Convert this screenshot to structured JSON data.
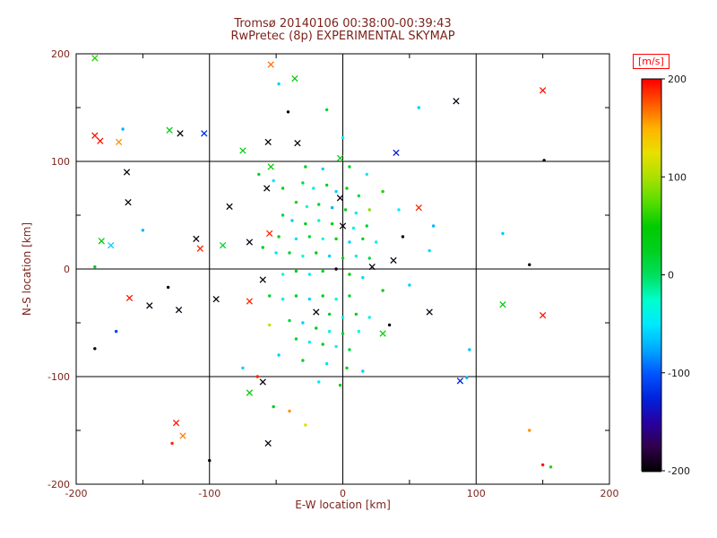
{
  "title": {
    "line1": "Tromsø 20140106 00:38:00-00:39:43",
    "line2": "RwPretec (8p) EXPERIMENTAL SKYMAP"
  },
  "axes": {
    "xlabel": "E-W location [km]",
    "ylabel": "N-S location [km]",
    "xticks": [
      -200,
      -100,
      0,
      100,
      200
    ],
    "yticks": [
      -200,
      -100,
      0,
      100,
      200
    ],
    "xlim": [
      -200,
      200
    ],
    "ylim": [
      -200,
      200
    ],
    "minor_tick_km": 50,
    "grid": true
  },
  "colorbar": {
    "label": "[m/s]",
    "ticks": [
      200,
      100,
      0,
      -100,
      -200
    ],
    "min": -200,
    "max": 200,
    "stops": [
      {
        "v": -200,
        "c": "#000000"
      },
      {
        "v": -175,
        "c": "#30004a"
      },
      {
        "v": -150,
        "c": "#2800a0"
      },
      {
        "v": -125,
        "c": "#0022dd"
      },
      {
        "v": -100,
        "c": "#0055ff"
      },
      {
        "v": -75,
        "c": "#00aaff"
      },
      {
        "v": -50,
        "c": "#00e8ff"
      },
      {
        "v": -25,
        "c": "#00ffcc"
      },
      {
        "v": 0,
        "c": "#00e060"
      },
      {
        "v": 25,
        "c": "#00d020"
      },
      {
        "v": 50,
        "c": "#00cc00"
      },
      {
        "v": 75,
        "c": "#55dd00"
      },
      {
        "v": 100,
        "c": "#aae000"
      },
      {
        "v": 125,
        "c": "#e8e000"
      },
      {
        "v": 150,
        "c": "#ffb400"
      },
      {
        "v": 175,
        "c": "#ff5a00"
      },
      {
        "v": 200,
        "c": "#ff0000"
      }
    ]
  },
  "colors": {
    "axis_text": "#7d231c",
    "colorbar_tick_text": "#1a1a1a",
    "frame": "#000000",
    "ms_label": "#ff0000",
    "background": "#ffffff"
  },
  "chart_data": {
    "type": "scatter",
    "title": "Tromsø 20140106 00:38:00-00:39:43 / RwPretec (8p) EXPERIMENTAL SKYMAP",
    "xlabel": "E-W location [km]",
    "ylabel": "N-S location [km]",
    "xlim": [
      -200,
      200
    ],
    "ylim": [
      -200,
      200
    ],
    "grid": true,
    "colorbar_label": "[m/s]",
    "colorbar_range": [
      -200,
      200
    ],
    "point_format": [
      "x_km",
      "y_km",
      "velocity_ms",
      "marker"
    ],
    "points": [
      [
        -186,
        196,
        60,
        "x"
      ],
      [
        -54,
        190,
        170,
        "x"
      ],
      [
        -36,
        177,
        45,
        "x"
      ],
      [
        -48,
        172,
        -60,
        "."
      ],
      [
        150,
        166,
        195,
        "x"
      ],
      [
        85,
        156,
        -195,
        "x"
      ],
      [
        57,
        150,
        -60,
        "."
      ],
      [
        -41,
        146,
        -195,
        "."
      ],
      [
        -12,
        148,
        20,
        "."
      ],
      [
        0,
        122,
        -50,
        "."
      ],
      [
        -165,
        130,
        -70,
        "."
      ],
      [
        -186,
        124,
        195,
        "x"
      ],
      [
        -182,
        119,
        195,
        "x"
      ],
      [
        -130,
        129,
        40,
        "x"
      ],
      [
        -122,
        126,
        -195,
        "x"
      ],
      [
        -104,
        126,
        -120,
        "x"
      ],
      [
        -168,
        118,
        160,
        "x"
      ],
      [
        -56,
        118,
        -195,
        "x"
      ],
      [
        -34,
        117,
        -195,
        "x"
      ],
      [
        -2,
        103,
        30,
        "x"
      ],
      [
        40,
        108,
        -130,
        "x"
      ],
      [
        151,
        101,
        -195,
        "."
      ],
      [
        -162,
        90,
        -195,
        "x"
      ],
      [
        -54,
        95,
        50,
        "x"
      ],
      [
        -15,
        93,
        -60,
        "."
      ],
      [
        5,
        95,
        20,
        "."
      ],
      [
        -75,
        110,
        30,
        "x"
      ],
      [
        -161,
        62,
        -195,
        "x"
      ],
      [
        -150,
        36,
        -70,
        "."
      ],
      [
        -181,
        26,
        40,
        "x"
      ],
      [
        -174,
        22,
        -60,
        "x"
      ],
      [
        -186,
        2,
        30,
        "."
      ],
      [
        -110,
        28,
        -195,
        "x"
      ],
      [
        -107,
        19,
        190,
        "x"
      ],
      [
        -131,
        -17,
        -195,
        "."
      ],
      [
        -160,
        -27,
        195,
        "x"
      ],
      [
        -145,
        -34,
        -195,
        "x"
      ],
      [
        -123,
        -38,
        -195,
        "x"
      ],
      [
        -186,
        -74,
        -195,
        "."
      ],
      [
        -170,
        -58,
        -110,
        "."
      ],
      [
        -28,
        95,
        25,
        "."
      ],
      [
        18,
        88,
        -50,
        "."
      ],
      [
        30,
        72,
        60,
        "."
      ],
      [
        42,
        55,
        -45,
        "."
      ],
      [
        -63,
        88,
        20,
        "."
      ],
      [
        -52,
        82,
        -50,
        "."
      ],
      [
        -45,
        75,
        30,
        "."
      ],
      [
        -57,
        75,
        -195,
        "x"
      ],
      [
        -30,
        80,
        10,
        "."
      ],
      [
        -22,
        75,
        -40,
        "."
      ],
      [
        -12,
        78,
        25,
        "."
      ],
      [
        -5,
        72,
        -60,
        "."
      ],
      [
        3,
        75,
        40,
        "."
      ],
      [
        -2,
        66,
        -195,
        "x"
      ],
      [
        12,
        68,
        15,
        "."
      ],
      [
        -35,
        62,
        60,
        "."
      ],
      [
        -27,
        58,
        -30,
        "."
      ],
      [
        -18,
        60,
        20,
        "."
      ],
      [
        -8,
        57,
        -70,
        "."
      ],
      [
        2,
        55,
        30,
        "."
      ],
      [
        10,
        52,
        -50,
        "."
      ],
      [
        20,
        55,
        90,
        "."
      ],
      [
        -85,
        58,
        -195,
        "x"
      ],
      [
        -45,
        50,
        15,
        "."
      ],
      [
        -38,
        45,
        -60,
        "."
      ],
      [
        -28,
        42,
        35,
        "."
      ],
      [
        -18,
        45,
        -20,
        "."
      ],
      [
        -8,
        42,
        50,
        "."
      ],
      [
        0,
        40,
        -195,
        "x"
      ],
      [
        8,
        38,
        -40,
        "."
      ],
      [
        18,
        40,
        20,
        "."
      ],
      [
        45,
        30,
        -195,
        "."
      ],
      [
        -55,
        33,
        190,
        "x"
      ],
      [
        -48,
        30,
        25,
        "."
      ],
      [
        -35,
        28,
        -55,
        "."
      ],
      [
        -25,
        30,
        15,
        "."
      ],
      [
        -15,
        28,
        -30,
        "."
      ],
      [
        -5,
        28,
        40,
        "."
      ],
      [
        5,
        25,
        -60,
        "."
      ],
      [
        15,
        28,
        25,
        "."
      ],
      [
        25,
        25,
        -40,
        "."
      ],
      [
        -70,
        25,
        -195,
        "x"
      ],
      [
        -90,
        22,
        20,
        "x"
      ],
      [
        -60,
        20,
        30,
        "."
      ],
      [
        -50,
        15,
        -50,
        "."
      ],
      [
        -40,
        15,
        20,
        "."
      ],
      [
        -30,
        12,
        -25,
        "."
      ],
      [
        -20,
        15,
        45,
        "."
      ],
      [
        -10,
        12,
        -60,
        "."
      ],
      [
        0,
        10,
        30,
        "."
      ],
      [
        10,
        12,
        -40,
        "."
      ],
      [
        20,
        10,
        15,
        "."
      ],
      [
        38,
        8,
        -195,
        "x"
      ],
      [
        22,
        2,
        -195,
        "x"
      ],
      [
        -5,
        0,
        -195,
        "."
      ],
      [
        -15,
        -2,
        25,
        "."
      ],
      [
        -25,
        -5,
        -45,
        "."
      ],
      [
        -35,
        -2,
        30,
        "."
      ],
      [
        -45,
        -5,
        -30,
        "."
      ],
      [
        5,
        -5,
        50,
        "."
      ],
      [
        15,
        -8,
        -55,
        "."
      ],
      [
        -60,
        -10,
        -195,
        "x"
      ],
      [
        30,
        -20,
        25,
        "."
      ],
      [
        50,
        -15,
        -60,
        "."
      ],
      [
        -70,
        -30,
        190,
        "x"
      ],
      [
        -55,
        -25,
        20,
        "."
      ],
      [
        -45,
        -28,
        -40,
        "."
      ],
      [
        -35,
        -25,
        25,
        "."
      ],
      [
        -25,
        -28,
        -60,
        "."
      ],
      [
        -15,
        -25,
        35,
        "."
      ],
      [
        -5,
        -28,
        -30,
        "."
      ],
      [
        5,
        -25,
        20,
        "."
      ],
      [
        -95,
        -28,
        -195,
        "x"
      ],
      [
        -20,
        -40,
        -195,
        "x"
      ],
      [
        -10,
        -42,
        25,
        "."
      ],
      [
        0,
        -45,
        -50,
        "."
      ],
      [
        10,
        -42,
        30,
        "."
      ],
      [
        20,
        -45,
        -35,
        "."
      ],
      [
        -40,
        -48,
        15,
        "."
      ],
      [
        -30,
        -50,
        -60,
        "."
      ],
      [
        -55,
        -52,
        110,
        "."
      ],
      [
        -20,
        -55,
        40,
        "."
      ],
      [
        -10,
        -58,
        -45,
        "."
      ],
      [
        0,
        -60,
        25,
        "."
      ],
      [
        12,
        -58,
        -30,
        "."
      ],
      [
        -35,
        -65,
        20,
        "."
      ],
      [
        -25,
        -68,
        -50,
        "."
      ],
      [
        -15,
        -70,
        30,
        "."
      ],
      [
        -5,
        -72,
        -40,
        "."
      ],
      [
        5,
        -75,
        15,
        "."
      ],
      [
        30,
        -60,
        45,
        "x"
      ],
      [
        35,
        -52,
        -195,
        "."
      ],
      [
        -48,
        -80,
        -60,
        "."
      ],
      [
        -30,
        -85,
        25,
        "."
      ],
      [
        -12,
        -88,
        -55,
        "."
      ],
      [
        3,
        -92,
        35,
        "."
      ],
      [
        15,
        -95,
        -60,
        "."
      ],
      [
        -2,
        -108,
        30,
        "."
      ],
      [
        -18,
        -105,
        -45,
        "."
      ],
      [
        -75,
        -92,
        -60,
        "."
      ],
      [
        57,
        57,
        190,
        "x"
      ],
      [
        68,
        40,
        -70,
        "."
      ],
      [
        120,
        33,
        -65,
        "."
      ],
      [
        65,
        17,
        -55,
        "."
      ],
      [
        140,
        4,
        -195,
        "."
      ],
      [
        120,
        -33,
        45,
        "x"
      ],
      [
        150,
        -43,
        195,
        "x"
      ],
      [
        65,
        -40,
        -195,
        "x"
      ],
      [
        95,
        -75,
        -65,
        "."
      ],
      [
        88,
        -104,
        -125,
        "x"
      ],
      [
        93,
        -101,
        -70,
        "."
      ],
      [
        140,
        -150,
        160,
        "."
      ],
      [
        150,
        -182,
        195,
        "."
      ],
      [
        156,
        -184,
        60,
        "."
      ],
      [
        -125,
        -143,
        195,
        "x"
      ],
      [
        -120,
        -155,
        165,
        "x"
      ],
      [
        -128,
        -162,
        190,
        "."
      ],
      [
        -56,
        -162,
        -195,
        "x"
      ],
      [
        -100,
        -178,
        -195,
        "."
      ],
      [
        -70,
        -115,
        50,
        "x"
      ],
      [
        -60,
        -105,
        -195,
        "x"
      ],
      [
        -64,
        -100,
        190,
        "."
      ],
      [
        -40,
        -132,
        160,
        "."
      ],
      [
        -28,
        -145,
        120,
        "."
      ],
      [
        -52,
        -128,
        30,
        "."
      ]
    ]
  }
}
